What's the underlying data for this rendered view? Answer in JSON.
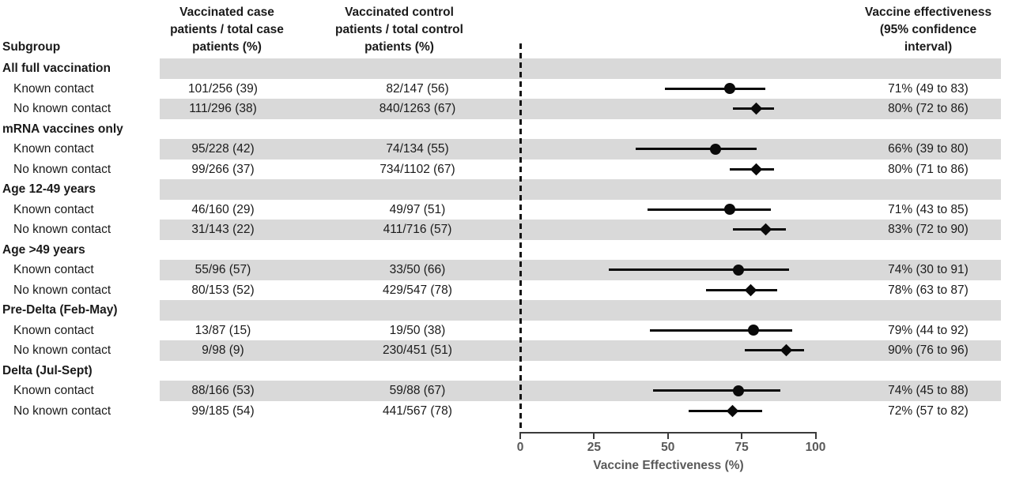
{
  "columns": {
    "subgroup": "Subgroup",
    "case_header": [
      "Vaccinated case",
      "patients / total case",
      "patients (%)"
    ],
    "control_header": [
      "Vaccinated control",
      "patients / total control",
      "patients (%)"
    ],
    "ve_header": [
      "Vaccine effectiveness",
      "(95% confidence",
      "interval)"
    ]
  },
  "rows": [
    {
      "type": "section",
      "label": "All full vaccination",
      "shaded": true
    },
    {
      "type": "item",
      "label": "Known contact",
      "case": "101/256 (39)",
      "control": "82/147 (56)",
      "ve": "71% (49 to 83)",
      "est": 71,
      "lo": 49,
      "hi": 83,
      "marker": "circle",
      "shaded": false
    },
    {
      "type": "item",
      "label": "No known contact",
      "case": "111/296 (38)",
      "control": "840/1263 (67)",
      "ve": "80% (72 to 86)",
      "est": 80,
      "lo": 72,
      "hi": 86,
      "marker": "diamond",
      "shaded": true
    },
    {
      "type": "section",
      "label": "mRNA vaccines only",
      "shaded": false
    },
    {
      "type": "item",
      "label": "Known contact",
      "case": "95/228 (42)",
      "control": "74/134 (55)",
      "ve": "66% (39 to 80)",
      "est": 66,
      "lo": 39,
      "hi": 80,
      "marker": "circle",
      "shaded": true
    },
    {
      "type": "item",
      "label": "No known contact",
      "case": "99/266 (37)",
      "control": "734/1102 (67)",
      "ve": "80% (71 to 86)",
      "est": 80,
      "lo": 71,
      "hi": 86,
      "marker": "diamond",
      "shaded": false
    },
    {
      "type": "section",
      "label": "Age 12-49 years",
      "shaded": true
    },
    {
      "type": "item",
      "label": "Known contact",
      "case": "46/160 (29)",
      "control": "49/97 (51)",
      "ve": "71% (43 to 85)",
      "est": 71,
      "lo": 43,
      "hi": 85,
      "marker": "circle",
      "shaded": false
    },
    {
      "type": "item",
      "label": "No known contact",
      "case": "31/143 (22)",
      "control": "411/716 (57)",
      "ve": "83% (72 to 90)",
      "est": 83,
      "lo": 72,
      "hi": 90,
      "marker": "diamond",
      "shaded": true
    },
    {
      "type": "section",
      "label": "Age >49 years",
      "shaded": false
    },
    {
      "type": "item",
      "label": "Known contact",
      "case": "55/96 (57)",
      "control": "33/50 (66)",
      "ve": "74% (30 to 91)",
      "est": 74,
      "lo": 30,
      "hi": 91,
      "marker": "circle",
      "shaded": true
    },
    {
      "type": "item",
      "label": "No known contact",
      "case": "80/153 (52)",
      "control": "429/547 (78)",
      "ve": "78% (63 to 87)",
      "est": 78,
      "lo": 63,
      "hi": 87,
      "marker": "diamond",
      "shaded": false
    },
    {
      "type": "section",
      "label": "Pre-Delta (Feb-May)",
      "shaded": true
    },
    {
      "type": "item",
      "label": "Known contact",
      "case": "13/87 (15)",
      "control": "19/50 (38)",
      "ve": "79% (44 to 92)",
      "est": 79,
      "lo": 44,
      "hi": 92,
      "marker": "circle",
      "shaded": false
    },
    {
      "type": "item",
      "label": "No known contact",
      "case": "9/98 (9)",
      "control": "230/451 (51)",
      "ve": "90% (76 to 96)",
      "est": 90,
      "lo": 76,
      "hi": 96,
      "marker": "diamond",
      "shaded": true
    },
    {
      "type": "section",
      "label": "Delta (Jul-Sept)",
      "shaded": false
    },
    {
      "type": "item",
      "label": "Known contact",
      "case": "88/166 (53)",
      "control": "59/88 (67)",
      "ve": "74% (45 to 88)",
      "est": 74,
      "lo": 45,
      "hi": 88,
      "marker": "circle",
      "shaded": true
    },
    {
      "type": "item",
      "label": "No known contact",
      "case": "99/185 (54)",
      "control": "441/567 (78)",
      "ve": "72% (57 to 82)",
      "est": 72,
      "lo": 57,
      "hi": 82,
      "marker": "diamond",
      "shaded": false
    }
  ],
  "axis": {
    "ticks": [
      0,
      25,
      50,
      75,
      100
    ],
    "title": "Vaccine Effectiveness (%)"
  },
  "colors": {
    "band": "#d9d9d9",
    "marker": "#0a0a0a",
    "axis_text": "#595959",
    "axis_line": "#3b3b3b",
    "text": "#1a1a1a"
  },
  "chart_data": {
    "type": "scatter",
    "variant": "forest-plot",
    "title": "",
    "xlabel": "Vaccine Effectiveness (%)",
    "xlim": [
      0,
      100
    ],
    "x_ticks": [
      0,
      25,
      50,
      75,
      100
    ],
    "reference_line_x": 0,
    "marker_legend": {
      "circle": "Known contact",
      "diamond": "No known contact"
    },
    "groups": [
      {
        "group": "All full vaccination",
        "points": [
          {
            "label": "Known contact",
            "estimate": 71,
            "ci_low": 49,
            "ci_high": 83,
            "case": "101/256 (39)",
            "control": "82/147 (56)"
          },
          {
            "label": "No known contact",
            "estimate": 80,
            "ci_low": 72,
            "ci_high": 86,
            "case": "111/296 (38)",
            "control": "840/1263 (67)"
          }
        ]
      },
      {
        "group": "mRNA vaccines only",
        "points": [
          {
            "label": "Known contact",
            "estimate": 66,
            "ci_low": 39,
            "ci_high": 80,
            "case": "95/228 (42)",
            "control": "74/134 (55)"
          },
          {
            "label": "No known contact",
            "estimate": 80,
            "ci_low": 71,
            "ci_high": 86,
            "case": "99/266 (37)",
            "control": "734/1102 (67)"
          }
        ]
      },
      {
        "group": "Age 12-49 years",
        "points": [
          {
            "label": "Known contact",
            "estimate": 71,
            "ci_low": 43,
            "ci_high": 85,
            "case": "46/160 (29)",
            "control": "49/97 (51)"
          },
          {
            "label": "No known contact",
            "estimate": 83,
            "ci_low": 72,
            "ci_high": 90,
            "case": "31/143 (22)",
            "control": "411/716 (57)"
          }
        ]
      },
      {
        "group": "Age >49 years",
        "points": [
          {
            "label": "Known contact",
            "estimate": 74,
            "ci_low": 30,
            "ci_high": 91,
            "case": "55/96 (57)",
            "control": "33/50 (66)"
          },
          {
            "label": "No known contact",
            "estimate": 78,
            "ci_low": 63,
            "ci_high": 87,
            "case": "80/153 (52)",
            "control": "429/547 (78)"
          }
        ]
      },
      {
        "group": "Pre-Delta (Feb-May)",
        "points": [
          {
            "label": "Known contact",
            "estimate": 79,
            "ci_low": 44,
            "ci_high": 92,
            "case": "13/87 (15)",
            "control": "19/50 (38)"
          },
          {
            "label": "No known contact",
            "estimate": 90,
            "ci_low": 76,
            "ci_high": 96,
            "case": "9/98 (9)",
            "control": "230/451 (51)"
          }
        ]
      },
      {
        "group": "Delta (Jul-Sept)",
        "points": [
          {
            "label": "Known contact",
            "estimate": 74,
            "ci_low": 45,
            "ci_high": 88,
            "case": "88/166 (53)",
            "control": "59/88 (67)"
          },
          {
            "label": "No known contact",
            "estimate": 72,
            "ci_low": 57,
            "ci_high": 82,
            "case": "99/185 (54)",
            "control": "441/567 (78)"
          }
        ]
      }
    ]
  }
}
